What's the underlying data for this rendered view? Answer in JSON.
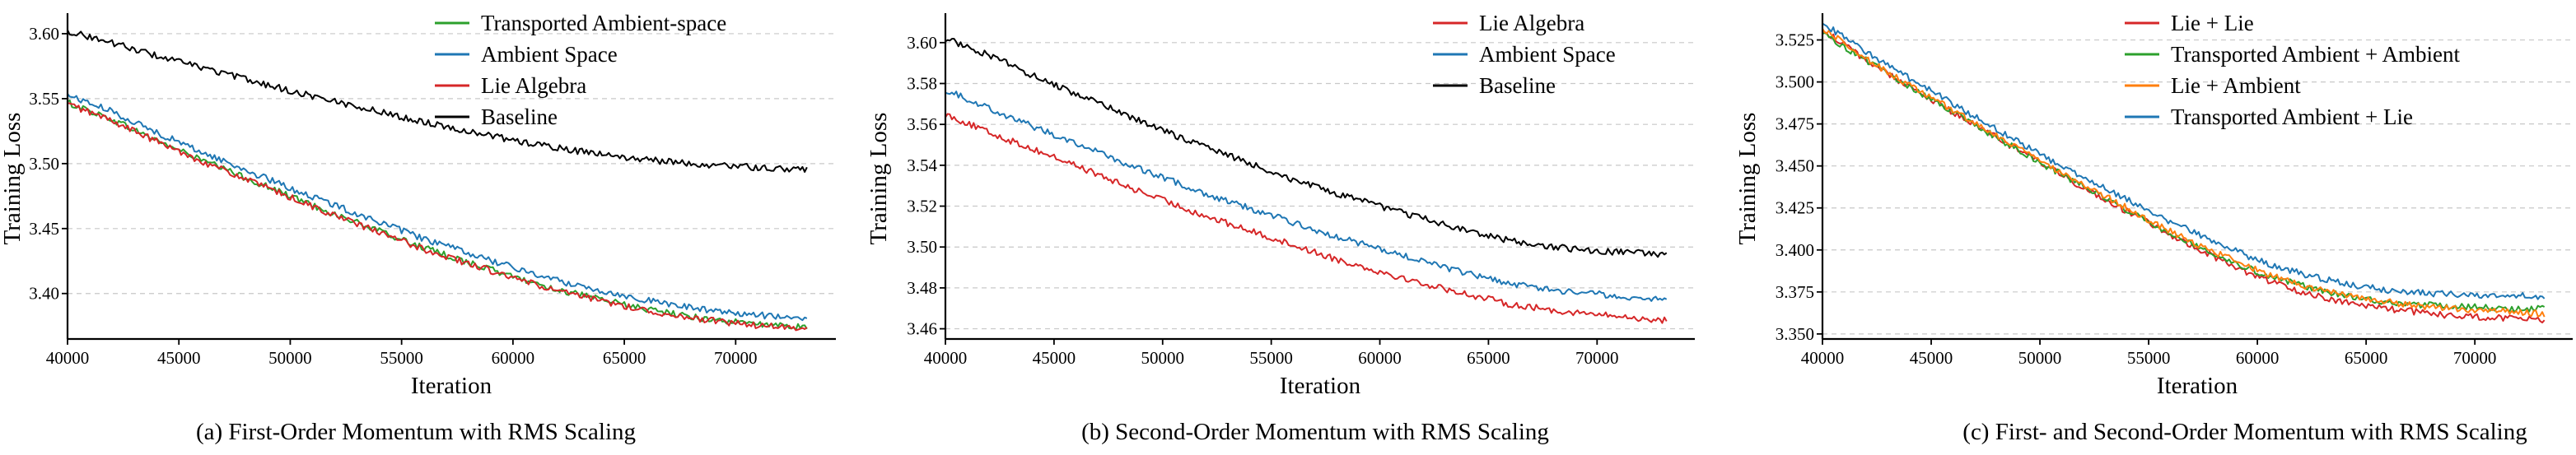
{
  "chart_data": [
    {
      "type": "line",
      "caption": "(a) First-Order Momentum with RMS Scaling",
      "xlabel": "Iteration",
      "ylabel": "Training Loss",
      "xlim": [
        40000,
        74500
      ],
      "ylim": [
        3.365,
        3.612
      ],
      "xticks": [
        40000,
        45000,
        50000,
        55000,
        60000,
        65000,
        70000
      ],
      "xtick_labels": [
        "40000",
        "45000",
        "50000",
        "55000",
        "60000",
        "65000",
        "70000"
      ],
      "yticks": [
        3.4,
        3.45,
        3.5,
        3.55,
        3.6
      ],
      "ytick_labels": [
        "3.40",
        "3.45",
        "3.50",
        "3.55",
        "3.60"
      ],
      "grid": "horizontal-dashed",
      "legend_position": "top-right",
      "series": [
        {
          "name": "Transported Ambient-space",
          "color": "#2ca02c",
          "x": [
            40000,
            42000,
            44000,
            46000,
            48000,
            50000,
            52000,
            54000,
            56000,
            58000,
            60000,
            62000,
            64000,
            66000,
            68000,
            70000,
            72000,
            73200
          ],
          "y": [
            3.547,
            3.534,
            3.518,
            3.503,
            3.489,
            3.475,
            3.461,
            3.448,
            3.435,
            3.424,
            3.413,
            3.403,
            3.395,
            3.388,
            3.382,
            3.378,
            3.375,
            3.374
          ]
        },
        {
          "name": "Ambient Space",
          "color": "#1f77b4",
          "x": [
            40000,
            42000,
            44000,
            46000,
            48000,
            50000,
            52000,
            54000,
            56000,
            58000,
            60000,
            62000,
            64000,
            66000,
            68000,
            70000,
            72000,
            73200
          ],
          "y": [
            3.553,
            3.54,
            3.524,
            3.509,
            3.495,
            3.481,
            3.468,
            3.455,
            3.442,
            3.431,
            3.42,
            3.41,
            3.402,
            3.395,
            3.389,
            3.385,
            3.382,
            3.381
          ]
        },
        {
          "name": "Lie Algebra",
          "color": "#d62728",
          "x": [
            40000,
            42000,
            44000,
            46000,
            48000,
            50000,
            52000,
            54000,
            56000,
            58000,
            60000,
            62000,
            64000,
            66000,
            68000,
            70000,
            72000,
            73200
          ],
          "y": [
            3.546,
            3.533,
            3.517,
            3.502,
            3.488,
            3.474,
            3.46,
            3.447,
            3.434,
            3.423,
            3.412,
            3.402,
            3.394,
            3.387,
            3.381,
            3.377,
            3.374,
            3.373
          ]
        },
        {
          "name": "Baseline",
          "color": "#000000",
          "x": [
            40000,
            42000,
            44000,
            46000,
            48000,
            50000,
            52000,
            54000,
            56000,
            58000,
            60000,
            62000,
            64000,
            66000,
            68000,
            70000,
            72000,
            73200
          ],
          "y": [
            3.602,
            3.593,
            3.583,
            3.574,
            3.565,
            3.556,
            3.548,
            3.54,
            3.532,
            3.525,
            3.518,
            3.512,
            3.507,
            3.503,
            3.5,
            3.498,
            3.496,
            3.495
          ]
        }
      ]
    },
    {
      "type": "line",
      "caption": "(b) Second-Order Momentum with RMS Scaling",
      "xlabel": "Iteration",
      "ylabel": "Training Loss",
      "xlim": [
        40000,
        74500
      ],
      "ylim": [
        3.455,
        3.612
      ],
      "xticks": [
        40000,
        45000,
        50000,
        55000,
        60000,
        65000,
        70000
      ],
      "xtick_labels": [
        "40000",
        "45000",
        "50000",
        "55000",
        "60000",
        "65000",
        "70000"
      ],
      "yticks": [
        3.46,
        3.48,
        3.5,
        3.52,
        3.54,
        3.56,
        3.58,
        3.6
      ],
      "ytick_labels": [
        "3.46",
        "3.48",
        "3.50",
        "3.52",
        "3.54",
        "3.56",
        "3.58",
        "3.60"
      ],
      "grid": "horizontal-dashed",
      "legend_position": "top-right",
      "series": [
        {
          "name": "Lie Algebra",
          "color": "#d62728",
          "x": [
            40000,
            42000,
            44000,
            46000,
            48000,
            50000,
            52000,
            54000,
            56000,
            58000,
            60000,
            62000,
            64000,
            66000,
            68000,
            70000,
            72000,
            73200
          ],
          "y": [
            3.565,
            3.556,
            3.548,
            3.54,
            3.531,
            3.523,
            3.515,
            3.508,
            3.501,
            3.494,
            3.488,
            3.482,
            3.477,
            3.472,
            3.469,
            3.467,
            3.465,
            3.464
          ]
        },
        {
          "name": "Ambient Space",
          "color": "#1f77b4",
          "x": [
            40000,
            42000,
            44000,
            46000,
            48000,
            50000,
            52000,
            54000,
            56000,
            58000,
            60000,
            62000,
            64000,
            66000,
            68000,
            70000,
            72000,
            73200
          ],
          "y": [
            3.577,
            3.568,
            3.559,
            3.551,
            3.542,
            3.534,
            3.526,
            3.519,
            3.512,
            3.505,
            3.499,
            3.493,
            3.487,
            3.482,
            3.479,
            3.477,
            3.475,
            3.474
          ]
        },
        {
          "name": "Baseline",
          "color": "#000000",
          "x": [
            40000,
            42000,
            44000,
            46000,
            48000,
            50000,
            52000,
            54000,
            56000,
            58000,
            60000,
            62000,
            64000,
            66000,
            68000,
            70000,
            72000,
            73200
          ],
          "y": [
            3.602,
            3.594,
            3.584,
            3.575,
            3.566,
            3.557,
            3.549,
            3.541,
            3.533,
            3.526,
            3.52,
            3.514,
            3.508,
            3.503,
            3.5,
            3.498,
            3.497,
            3.496
          ]
        }
      ]
    },
    {
      "type": "line",
      "caption": "(c) First- and Second-Order Momentum with RMS Scaling",
      "xlabel": "Iteration",
      "ylabel": "Training Loss",
      "xlim": [
        40000,
        74500
      ],
      "ylim": [
        3.347,
        3.538
      ],
      "xticks": [
        40000,
        45000,
        50000,
        55000,
        60000,
        65000,
        70000
      ],
      "xtick_labels": [
        "40000",
        "45000",
        "50000",
        "55000",
        "60000",
        "65000",
        "70000"
      ],
      "yticks": [
        3.35,
        3.375,
        3.4,
        3.425,
        3.45,
        3.475,
        3.5,
        3.525
      ],
      "ytick_labels": [
        "3.350",
        "3.375",
        "3.400",
        "3.425",
        "3.450",
        "3.475",
        "3.500",
        "3.525"
      ],
      "grid": "horizontal-dashed",
      "legend_position": "top-right",
      "series": [
        {
          "name": "Lie + Lie",
          "color": "#d62728",
          "x": [
            40000,
            42000,
            44000,
            46000,
            48000,
            50000,
            52000,
            54000,
            56000,
            58000,
            60000,
            62000,
            64000,
            66000,
            68000,
            70000,
            72000,
            73200
          ],
          "y": [
            3.531,
            3.513,
            3.497,
            3.482,
            3.467,
            3.452,
            3.437,
            3.423,
            3.409,
            3.396,
            3.384,
            3.375,
            3.369,
            3.365,
            3.362,
            3.36,
            3.359,
            3.358
          ]
        },
        {
          "name": "Transported Ambient + Ambient",
          "color": "#2ca02c",
          "x": [
            40000,
            42000,
            44000,
            46000,
            48000,
            50000,
            52000,
            54000,
            56000,
            58000,
            60000,
            62000,
            64000,
            66000,
            68000,
            70000,
            72000,
            73200
          ],
          "y": [
            3.529,
            3.513,
            3.497,
            3.482,
            3.467,
            3.452,
            3.438,
            3.424,
            3.41,
            3.398,
            3.387,
            3.379,
            3.373,
            3.369,
            3.367,
            3.366,
            3.365,
            3.365
          ]
        },
        {
          "name": "Lie + Ambient",
          "color": "#ff7f0e",
          "x": [
            40000,
            42000,
            44000,
            46000,
            48000,
            50000,
            52000,
            54000,
            56000,
            58000,
            60000,
            62000,
            64000,
            66000,
            68000,
            70000,
            72000,
            73200
          ],
          "y": [
            3.532,
            3.514,
            3.498,
            3.483,
            3.468,
            3.453,
            3.439,
            3.425,
            3.411,
            3.399,
            3.388,
            3.379,
            3.373,
            3.369,
            3.366,
            3.364,
            3.363,
            3.362
          ]
        },
        {
          "name": "Transported Ambient + Lie",
          "color": "#1f77b4",
          "x": [
            40000,
            42000,
            44000,
            46000,
            48000,
            50000,
            52000,
            54000,
            56000,
            58000,
            60000,
            62000,
            64000,
            66000,
            68000,
            70000,
            72000,
            73200
          ],
          "y": [
            3.535,
            3.518,
            3.502,
            3.487,
            3.472,
            3.457,
            3.443,
            3.43,
            3.417,
            3.405,
            3.394,
            3.386,
            3.38,
            3.376,
            3.374,
            3.373,
            3.373,
            3.372
          ]
        }
      ]
    }
  ]
}
